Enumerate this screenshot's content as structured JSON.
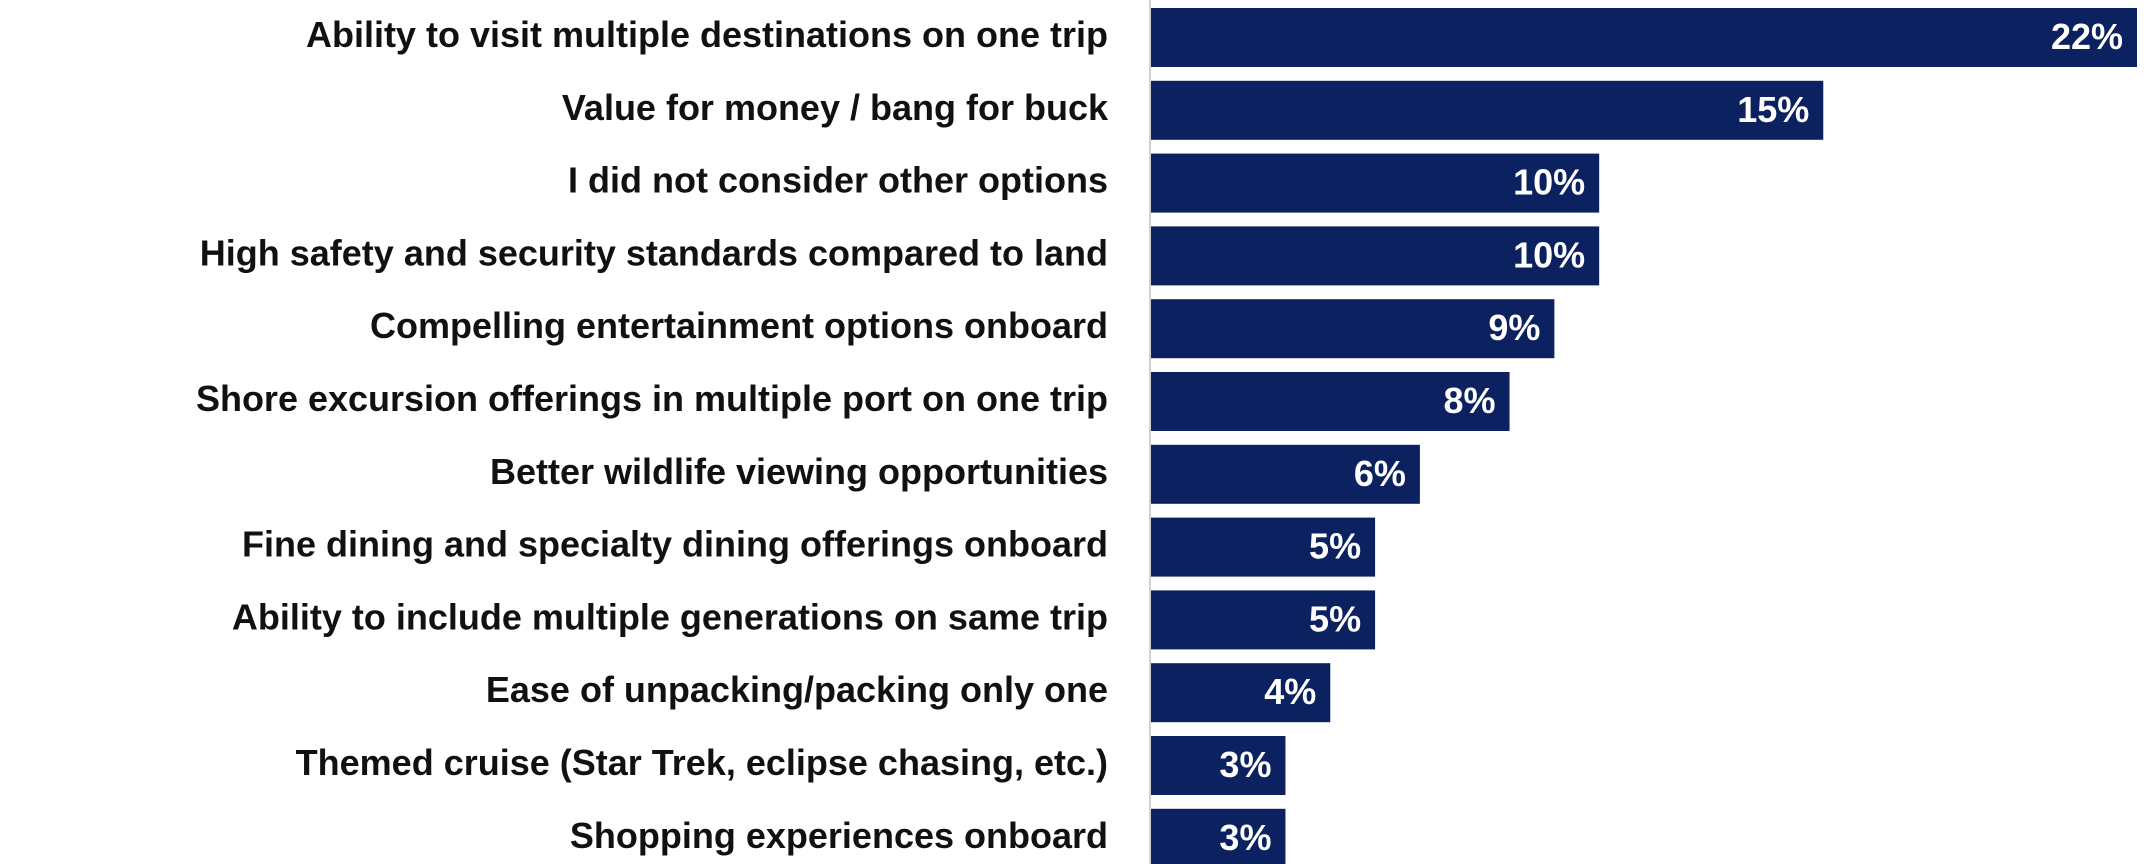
{
  "chart_data": {
    "type": "bar",
    "orientation": "horizontal",
    "categories": [
      "Ability to visit multiple destinations on one trip",
      "Value for money / bang for buck",
      "I did not consider other options",
      "High safety and security standards compared to land",
      "Compelling entertainment options onboard",
      "Shore excursion offerings in multiple port on one trip",
      "Better wildlife viewing opportunities",
      "Fine dining and specialty dining offerings onboard",
      "Ability to include multiple generations on same trip",
      "Ease of unpacking/packing only one",
      "Themed cruise (Star Trek, eclipse chasing, etc.)",
      "Shopping experiences onboard"
    ],
    "values": [
      22,
      15,
      10,
      10,
      9,
      8,
      6,
      5,
      5,
      4,
      3,
      3
    ],
    "value_labels": [
      "22%",
      "15%",
      "10%",
      "10%",
      "9%",
      "8%",
      "6%",
      "5%",
      "5%",
      "4%",
      "3%",
      "3%"
    ],
    "color": "#0c2260"
  }
}
